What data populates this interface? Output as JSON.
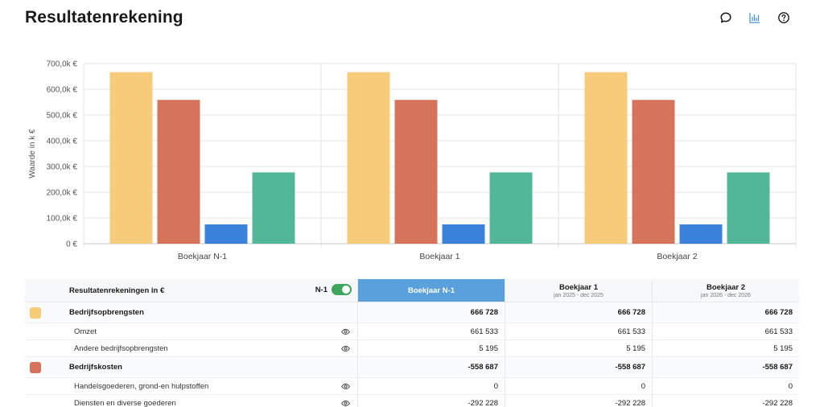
{
  "header": {
    "title": "Resultatenrekening"
  },
  "toolbar": {
    "comment_icon": "comment-icon",
    "chart_icon": "bar-chart-icon",
    "help_icon": "help-icon",
    "chart_icon_color": "#4a8fd6"
  },
  "chart_data": {
    "type": "bar",
    "categories": [
      "Boekjaar N-1",
      "Boekjaar 1",
      "Boekjaar 2"
    ],
    "series": [
      {
        "name": "Bedrijfsopbrengsten",
        "color": "#f6cc7b",
        "values": [
          666.728,
          666.728,
          666.728
        ]
      },
      {
        "name": "Bedrijfskosten",
        "color": "#d5745a",
        "values": [
          558.687,
          558.687,
          558.687
        ]
      },
      {
        "color": "#3b82dc",
        "values": [
          75,
          75,
          75
        ]
      },
      {
        "color": "#52b797",
        "values": [
          277,
          277,
          277
        ]
      }
    ],
    "ylabel": "Waarde in k €",
    "ylim": [
      0,
      700
    ],
    "yticks": [
      0,
      100,
      200,
      300,
      400,
      500,
      600,
      700
    ],
    "ytick_labels": [
      "0 €",
      "100,0k €",
      "200,0k €",
      "300,0k €",
      "400,0k €",
      "500,0k €",
      "600,0k €",
      "700,0k €"
    ],
    "grid": true,
    "legend": "none"
  },
  "table": {
    "header_label": "Resultatenrekeningen in €",
    "toggle_label": "N-1",
    "toggle_on": true,
    "toggle_color": "#3da65a",
    "active_color": "#5aa0dc",
    "columns": [
      {
        "label": "Boekjaar N-1",
        "sub": ""
      },
      {
        "label": "Boekjaar 1",
        "sub": "jan 2025 - dec 2025"
      },
      {
        "label": "Boekjaar 2",
        "sub": "jan 2026 - dec 2026"
      }
    ],
    "rows": [
      {
        "type": "group",
        "label": "Bedrijfsopbrengsten",
        "color": "#f6cc7b",
        "values": [
          "666 728",
          "666 728",
          "666 728"
        ]
      },
      {
        "type": "child",
        "label": "Omzet",
        "values": [
          "661 533",
          "661 533",
          "661 533"
        ]
      },
      {
        "type": "child",
        "label": "Andere bedrijfsopbrengsten",
        "values": [
          "5 195",
          "5 195",
          "5 195"
        ]
      },
      {
        "type": "group",
        "label": "Bedrijfskosten",
        "color": "#d5745a",
        "values": [
          "-558 687",
          "-558 687",
          "-558 687"
        ]
      },
      {
        "type": "child",
        "label": "Handelsgoederen, grond-en hulpstoffen",
        "values": [
          "0",
          "0",
          "0"
        ]
      },
      {
        "type": "child",
        "label": "Diensten en diverse goederen",
        "values": [
          "-292 228",
          "-292 228",
          "-292 228"
        ]
      }
    ]
  }
}
